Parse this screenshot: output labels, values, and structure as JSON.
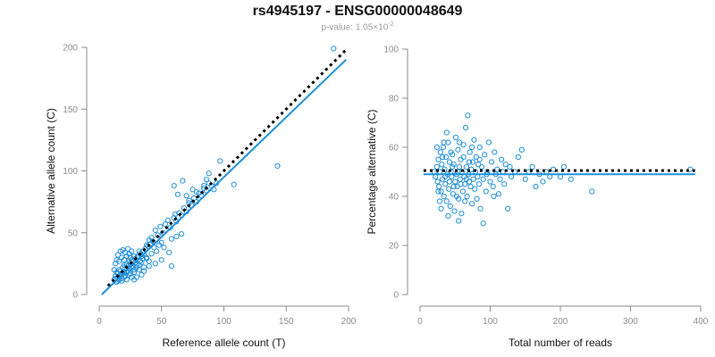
{
  "title": "rs4945197 - ENSG00000048649",
  "subtitle": {
    "label": "p-value: ",
    "mantissa": "1.05×10",
    "exponent": "-2"
  },
  "colors": {
    "points": "#1f8fd8",
    "fit_line": "#1f8fd8",
    "reference_line": "#000000",
    "axis": "#8a8a8a"
  },
  "chart_data": [
    {
      "type": "scatter",
      "xlabel": "Reference allele count (T)",
      "ylabel": "Alternative allele count (C)",
      "xlim": [
        0,
        200
      ],
      "ylim": [
        0,
        200
      ],
      "xticks": [
        0,
        50,
        100,
        150,
        200
      ],
      "yticks": [
        0,
        50,
        100,
        150,
        200
      ],
      "lines": [
        {
          "style": "dotted",
          "color": "#000000",
          "points": [
            [
              7,
              7
            ],
            [
              198,
              198
            ]
          ]
        },
        {
          "style": "solid",
          "color": "#1f8fd8",
          "points": [
            [
              2,
              0
            ],
            [
              198,
              190
            ]
          ]
        }
      ],
      "points": [
        [
          12,
          12
        ],
        [
          13,
          15
        ],
        [
          14,
          18
        ],
        [
          15,
          14
        ],
        [
          16,
          20
        ],
        [
          17,
          16
        ],
        [
          18,
          13
        ],
        [
          19,
          22
        ],
        [
          20,
          18
        ],
        [
          21,
          15
        ],
        [
          22,
          25
        ],
        [
          23,
          19
        ],
        [
          24,
          21
        ],
        [
          25,
          17
        ],
        [
          26,
          28
        ],
        [
          27,
          23
        ],
        [
          28,
          20
        ],
        [
          29,
          26
        ],
        [
          30,
          22
        ],
        [
          31,
          30
        ],
        [
          32,
          24
        ],
        [
          33,
          27
        ],
        [
          34,
          31
        ],
        [
          35,
          29
        ],
        [
          36,
          33
        ],
        [
          12,
          20
        ],
        [
          13,
          25
        ],
        [
          14,
          28
        ],
        [
          15,
          32
        ],
        [
          16,
          27
        ],
        [
          17,
          35
        ],
        [
          18,
          30
        ],
        [
          19,
          36
        ],
        [
          20,
          28
        ],
        [
          21,
          34
        ],
        [
          22,
          31
        ],
        [
          23,
          37
        ],
        [
          24,
          33
        ],
        [
          25,
          30
        ],
        [
          26,
          35
        ],
        [
          14,
          10
        ],
        [
          16,
          12
        ],
        [
          18,
          16
        ],
        [
          20,
          14
        ],
        [
          22,
          18
        ],
        [
          24,
          16
        ],
        [
          26,
          22
        ],
        [
          28,
          18
        ],
        [
          30,
          24
        ],
        [
          32,
          20
        ],
        [
          34,
          26
        ],
        [
          36,
          22
        ],
        [
          38,
          30
        ],
        [
          40,
          27
        ],
        [
          42,
          33
        ],
        [
          44,
          38
        ],
        [
          46,
          35
        ],
        [
          48,
          40
        ],
        [
          50,
          42
        ],
        [
          52,
          38
        ],
        [
          38,
          40
        ],
        [
          40,
          44
        ],
        [
          42,
          46
        ],
        [
          45,
          52
        ],
        [
          47,
          48
        ],
        [
          49,
          55
        ],
        [
          51,
          50
        ],
        [
          53,
          57
        ],
        [
          55,
          60
        ],
        [
          57,
          54
        ],
        [
          60,
          62
        ],
        [
          62,
          59
        ],
        [
          64,
          66
        ],
        [
          66,
          64
        ],
        [
          68,
          70
        ],
        [
          70,
          67
        ],
        [
          72,
          74
        ],
        [
          74,
          72
        ],
        [
          76,
          78
        ],
        [
          78,
          75
        ],
        [
          80,
          82
        ],
        [
          82,
          80
        ],
        [
          84,
          86
        ],
        [
          86,
          84
        ],
        [
          88,
          90
        ],
        [
          90,
          88
        ],
        [
          58,
          45
        ],
        [
          62,
          47
        ],
        [
          66,
          49
        ],
        [
          61,
          65
        ],
        [
          60,
          88
        ],
        [
          63,
          81
        ],
        [
          67,
          92
        ],
        [
          70,
          80
        ],
        [
          72,
          76
        ],
        [
          75,
          85
        ],
        [
          78,
          83
        ],
        [
          84,
          88
        ],
        [
          86,
          93
        ],
        [
          88,
          98
        ],
        [
          92,
          85
        ],
        [
          94,
          90
        ],
        [
          97,
          108
        ],
        [
          108,
          89
        ],
        [
          143,
          104
        ],
        [
          188,
          199
        ],
        [
          58,
          23
        ],
        [
          56,
          34
        ],
        [
          50,
          28
        ],
        [
          45,
          25
        ],
        [
          40,
          23
        ],
        [
          38,
          29
        ],
        [
          36,
          19
        ],
        [
          34,
          16
        ],
        [
          30,
          14
        ],
        [
          28,
          12
        ],
        [
          26,
          14
        ],
        [
          22,
          12
        ],
        [
          18,
          11
        ],
        [
          15,
          11
        ],
        [
          13,
          13
        ],
        [
          15,
          17
        ],
        [
          17,
          19
        ],
        [
          19,
          17
        ],
        [
          21,
          21
        ],
        [
          23,
          23
        ],
        [
          25,
          25
        ],
        [
          27,
          27
        ],
        [
          29,
          29
        ],
        [
          31,
          31
        ],
        [
          33,
          33
        ],
        [
          35,
          35
        ],
        [
          37,
          37
        ],
        [
          39,
          39
        ],
        [
          41,
          41
        ],
        [
          43,
          43
        ],
        [
          20,
          24
        ],
        [
          24,
          27
        ],
        [
          28,
          31
        ],
        [
          32,
          35
        ]
      ]
    },
    {
      "type": "scatter",
      "xlabel": "Total number of reads",
      "ylabel": "Percentage alternative (C)",
      "xlim": [
        0,
        400
      ],
      "ylim": [
        0,
        100
      ],
      "xticks": [
        0,
        100,
        200,
        300,
        400
      ],
      "yticks": [
        0,
        20,
        40,
        60,
        80,
        100
      ],
      "lines": [
        {
          "style": "dotted",
          "color": "#000000",
          "points": [
            [
              5,
              50.5
            ],
            [
              392,
              50.5
            ]
          ]
        },
        {
          "style": "solid",
          "color": "#1f8fd8",
          "points": [
            [
              5,
              49
            ],
            [
              392,
              49
            ]
          ]
        }
      ],
      "points": [
        [
          20,
          50
        ],
        [
          22,
          48
        ],
        [
          24,
          52
        ],
        [
          25,
          46
        ],
        [
          26,
          55
        ],
        [
          27,
          44
        ],
        [
          28,
          50
        ],
        [
          29,
          58
        ],
        [
          30,
          42
        ],
        [
          31,
          53
        ],
        [
          32,
          47
        ],
        [
          33,
          60
        ],
        [
          34,
          40
        ],
        [
          35,
          51
        ],
        [
          36,
          45
        ],
        [
          37,
          56
        ],
        [
          38,
          38
        ],
        [
          39,
          49
        ],
        [
          40,
          62
        ],
        [
          41,
          43
        ],
        [
          42,
          54
        ],
        [
          43,
          36
        ],
        [
          44,
          50
        ],
        [
          45,
          48
        ],
        [
          46,
          57
        ],
        [
          47,
          41
        ],
        [
          48,
          53
        ],
        [
          49,
          34
        ],
        [
          50,
          46
        ],
        [
          51,
          64
        ],
        [
          52,
          49
        ],
        [
          53,
          44
        ],
        [
          54,
          59
        ],
        [
          55,
          39
        ],
        [
          56,
          52
        ],
        [
          57,
          47
        ],
        [
          58,
          55
        ],
        [
          59,
          33
        ],
        [
          60,
          50
        ],
        [
          61,
          42
        ],
        [
          62,
          61
        ],
        [
          63,
          48
        ],
        [
          64,
          45
        ],
        [
          65,
          68
        ],
        [
          66,
          52
        ],
        [
          67,
          40
        ],
        [
          68,
          73
        ],
        [
          69,
          49
        ],
        [
          70,
          46
        ],
        [
          71,
          58
        ],
        [
          72,
          44
        ],
        [
          73,
          51
        ],
        [
          74,
          37
        ],
        [
          75,
          54
        ],
        [
          76,
          47
        ],
        [
          77,
          63
        ],
        [
          78,
          43
        ],
        [
          79,
          50
        ],
        [
          80,
          56
        ],
        [
          81,
          39
        ],
        [
          82,
          48
        ],
        [
          83,
          53
        ],
        [
          84,
          45
        ],
        [
          85,
          60
        ],
        [
          86,
          35
        ],
        [
          88,
          52
        ],
        [
          90,
          47
        ],
        [
          92,
          57
        ],
        [
          94,
          42
        ],
        [
          96,
          50
        ],
        [
          98,
          62
        ],
        [
          100,
          46
        ],
        [
          102,
          54
        ],
        [
          104,
          44
        ],
        [
          106,
          58
        ],
        [
          108,
          49
        ],
        [
          110,
          51
        ],
        [
          112,
          41
        ],
        [
          114,
          47
        ],
        [
          116,
          55
        ],
        [
          118,
          50
        ],
        [
          120,
          45
        ],
        [
          122,
          53
        ],
        [
          125,
          35
        ],
        [
          128,
          52
        ],
        [
          130,
          48
        ],
        [
          135,
          50
        ],
        [
          140,
          56
        ],
        [
          145,
          59
        ],
        [
          150,
          47
        ],
        [
          155,
          50
        ],
        [
          160,
          52
        ],
        [
          165,
          44
        ],
        [
          170,
          49
        ],
        [
          175,
          46
        ],
        [
          180,
          50
        ],
        [
          185,
          48
        ],
        [
          190,
          51
        ],
        [
          200,
          48
        ],
        [
          205,
          52
        ],
        [
          215,
          47
        ],
        [
          245,
          42
        ],
        [
          385,
          51
        ],
        [
          30,
          35
        ],
        [
          40,
          32
        ],
        [
          55,
          30
        ],
        [
          90,
          29
        ],
        [
          85,
          55
        ],
        [
          95,
          49
        ],
        [
          105,
          40
        ],
        [
          24,
          60
        ],
        [
          26,
          42
        ],
        [
          28,
          38
        ],
        [
          32,
          56
        ],
        [
          34,
          62
        ],
        [
          36,
          48
        ],
        [
          38,
          66
        ],
        [
          42,
          46
        ],
        [
          44,
          58
        ],
        [
          46,
          52
        ],
        [
          48,
          44
        ],
        [
          52,
          40
        ],
        [
          54,
          50
        ],
        [
          56,
          62
        ],
        [
          58,
          45
        ],
        [
          62,
          56
        ],
        [
          64,
          38
        ],
        [
          66,
          47
        ],
        [
          70,
          54
        ],
        [
          74,
          60
        ]
      ]
    }
  ]
}
